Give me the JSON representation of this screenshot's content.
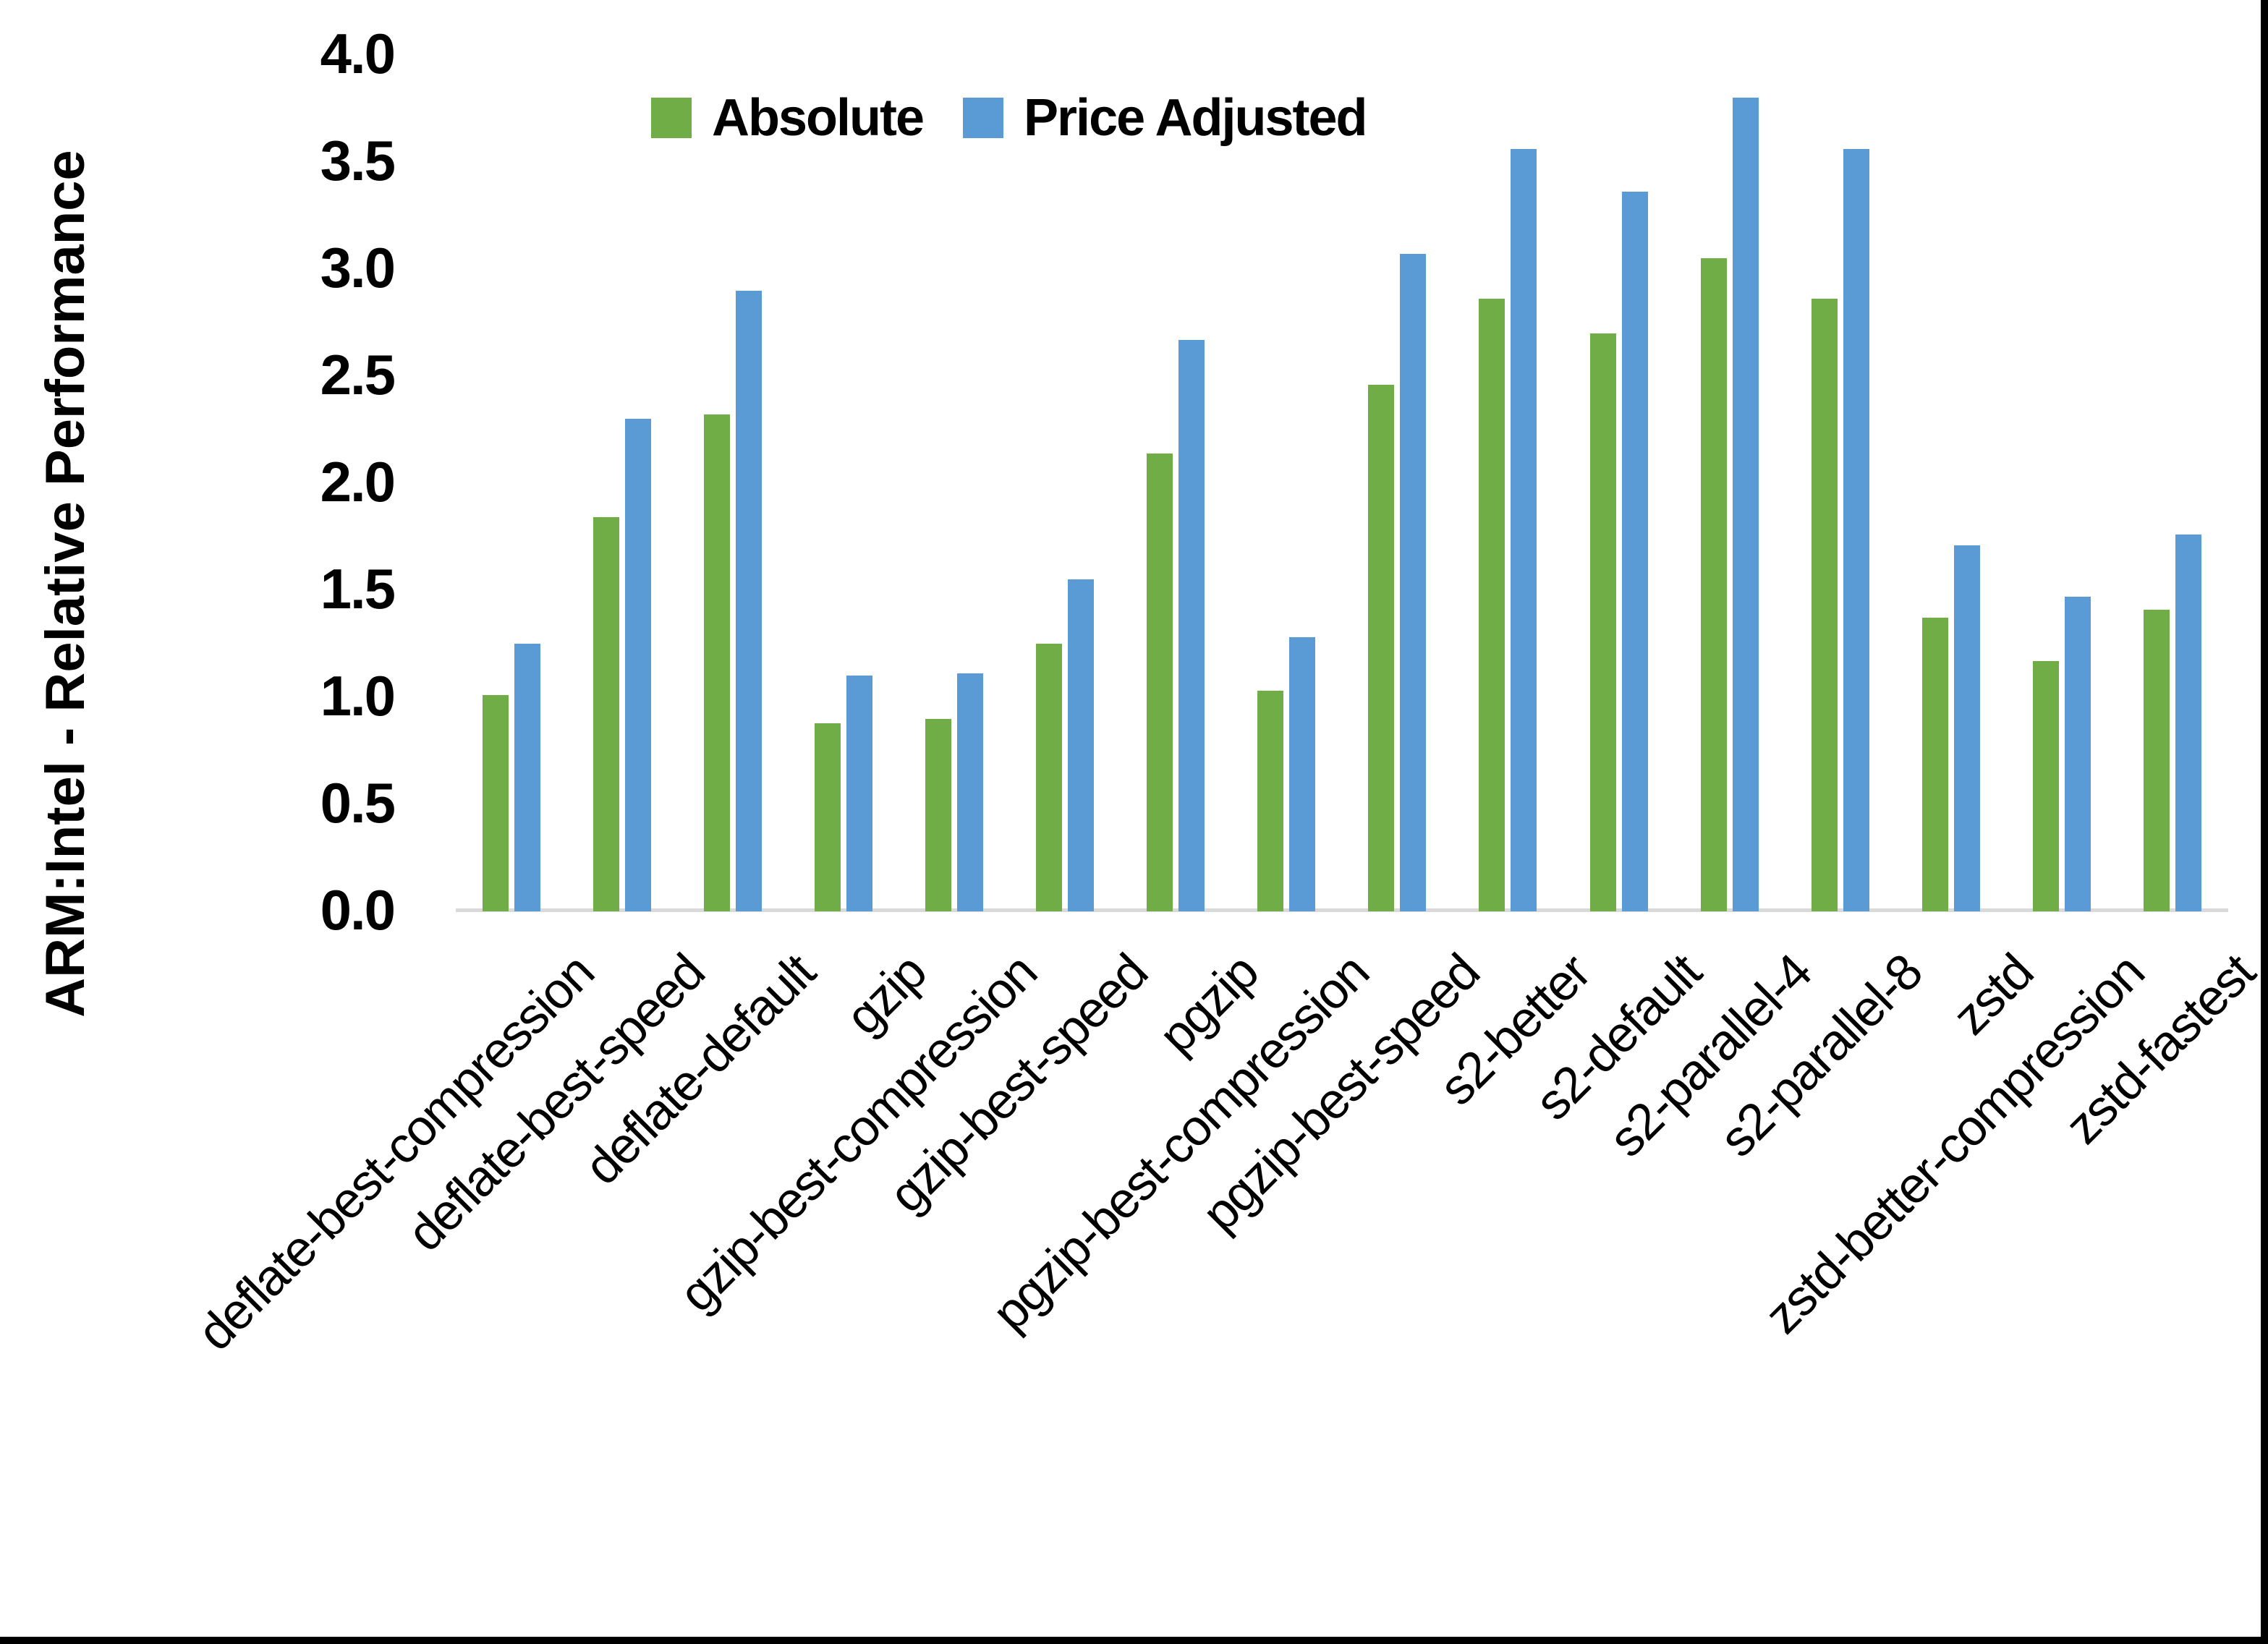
{
  "chart_data": {
    "type": "bar",
    "title": "",
    "xlabel": "",
    "ylabel": "ARM:Intel - Relative Performance",
    "ylim": [
      0.0,
      4.0
    ],
    "ytick_step": 0.5,
    "ytick_labels": [
      "0.0",
      "0.5",
      "1.0",
      "1.5",
      "2.0",
      "2.5",
      "3.0",
      "3.5",
      "4.0"
    ],
    "grid": false,
    "legend_position": "top-center",
    "axis_line_color": "#D9D9D9",
    "categories": [
      "deflate-best-compression",
      "deflate-best-speed",
      "deflate-default",
      "gzip",
      "gzip-best-compression",
      "gzip-best-speed",
      "pgzip",
      "pgzip-best-compression",
      "pgzip-best-speed",
      "s2-better",
      "s2-default",
      "s2-parallel-4",
      "s2-parallel-8",
      "zstd",
      "zstd-better-compression",
      "zstd-fastest"
    ],
    "series": [
      {
        "name": "Absolute",
        "color": "#70AD47",
        "values": [
          1.01,
          1.84,
          2.32,
          0.88,
          0.9,
          1.25,
          2.14,
          1.03,
          2.46,
          2.86,
          2.7,
          3.05,
          2.86,
          1.37,
          1.17,
          1.41
        ]
      },
      {
        "name": "Price Adjusted",
        "color": "#5B9BD5",
        "values": [
          1.25,
          2.3,
          2.9,
          1.1,
          1.11,
          1.55,
          2.67,
          1.28,
          3.07,
          3.56,
          3.36,
          3.8,
          3.56,
          1.71,
          1.47,
          1.76
        ]
      }
    ]
  },
  "legend": {
    "items": [
      {
        "label": "Absolute",
        "color": "#70AD47"
      },
      {
        "label": "Price Adjusted",
        "color": "#5B9BD5"
      }
    ]
  },
  "frame": {
    "background": "#FFFFFF",
    "border_color": "#000000"
  }
}
